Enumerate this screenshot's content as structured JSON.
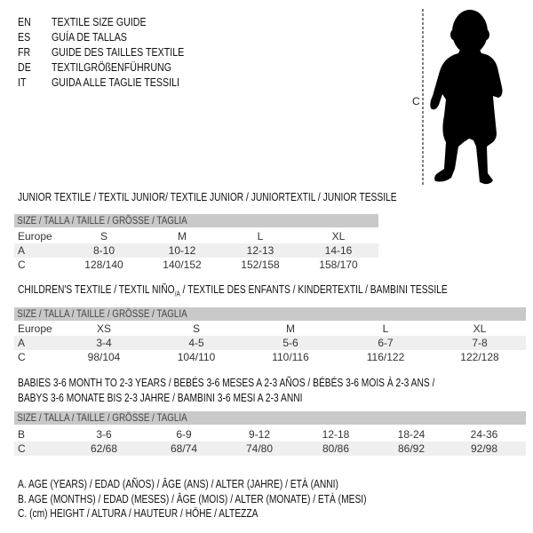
{
  "languages": [
    {
      "code": "EN",
      "text": "TEXTILE SIZE GUIDE"
    },
    {
      "code": "ES",
      "text": "GUÍA DE TALLAS"
    },
    {
      "code": "FR",
      "text": "GUIDE DES TAILLES TEXTILE"
    },
    {
      "code": "DE",
      "text": "TEXTILGRÖßENFÜHRUNG"
    },
    {
      "code": "IT",
      "text": "GUIDA ALLE TAGLIE TESSILI"
    }
  ],
  "figure": {
    "measure_label": "C"
  },
  "size_header": "SIZE / TALLA / TAILLE / GRÖSSE / TAGLIA",
  "junior": {
    "title": "JUNIOR TEXTILE / TEXTIL JUNIOR/ TEXTILE JUNIOR / JUNIORTEXTIL / JUNIOR TESSILE",
    "rows": [
      {
        "label": "Europe",
        "values": [
          "S",
          "M",
          "L",
          "XL"
        ]
      },
      {
        "label": "A",
        "values": [
          "8-10",
          "10-12",
          "12-13",
          "14-16"
        ]
      },
      {
        "label": "C",
        "values": [
          "128/140",
          "140/152",
          "152/158",
          "158/170"
        ]
      }
    ]
  },
  "children": {
    "title_a": "CHILDREN'S TEXTILE / TEXTIL NIÑO",
    "title_sub": "/A",
    "title_b": " / TEXTILE DES ENFANTS / KINDERTEXTIL / BAMBINI TESSILE",
    "rows": [
      {
        "label": "Europe",
        "values": [
          "XS",
          "S",
          "M",
          "L",
          "XL"
        ]
      },
      {
        "label": "A",
        "values": [
          "3-4",
          "4-5",
          "5-6",
          "6-7",
          "7-8"
        ]
      },
      {
        "label": "C",
        "values": [
          "98/104",
          "104/110",
          "110/116",
          "116/122",
          "122/128"
        ]
      }
    ]
  },
  "babies": {
    "title_line1": "BABIES 3-6 MONTH TO 2-3 YEARS / BEBÉS 3-6 MESES A 2-3 AÑOS / BÉBÉS 3-6 MOIS À 2-3 ANS /",
    "title_line2": "BABYS 3-6 MONATE BIS 2-3 JAHRE / BAMBINI 3-6 MESI A 2-3 ANNI",
    "rows": [
      {
        "label": "B",
        "values": [
          "3-6",
          "6-9",
          "9-12",
          "12-18",
          "18-24",
          "24-36"
        ]
      },
      {
        "label": "C",
        "values": [
          "62/68",
          "68/74",
          "74/80",
          "80/86",
          "86/92",
          "92/98"
        ]
      }
    ]
  },
  "legend": [
    "A. AGE (YEARS) / EDAD (AÑOS) / ÂGE (ANS) / ALTER (JAHRE) / ETÀ (ANNI)",
    "B. AGE (MONTHS) / EDAD (MESES) / ÂGE (MOIS) / ALTER (MONATE) / ETÀ (MESI)",
    "C. (cm) HEIGHT / ALTURA / HAUTEUR / HÖHE / ALTEZZA"
  ]
}
